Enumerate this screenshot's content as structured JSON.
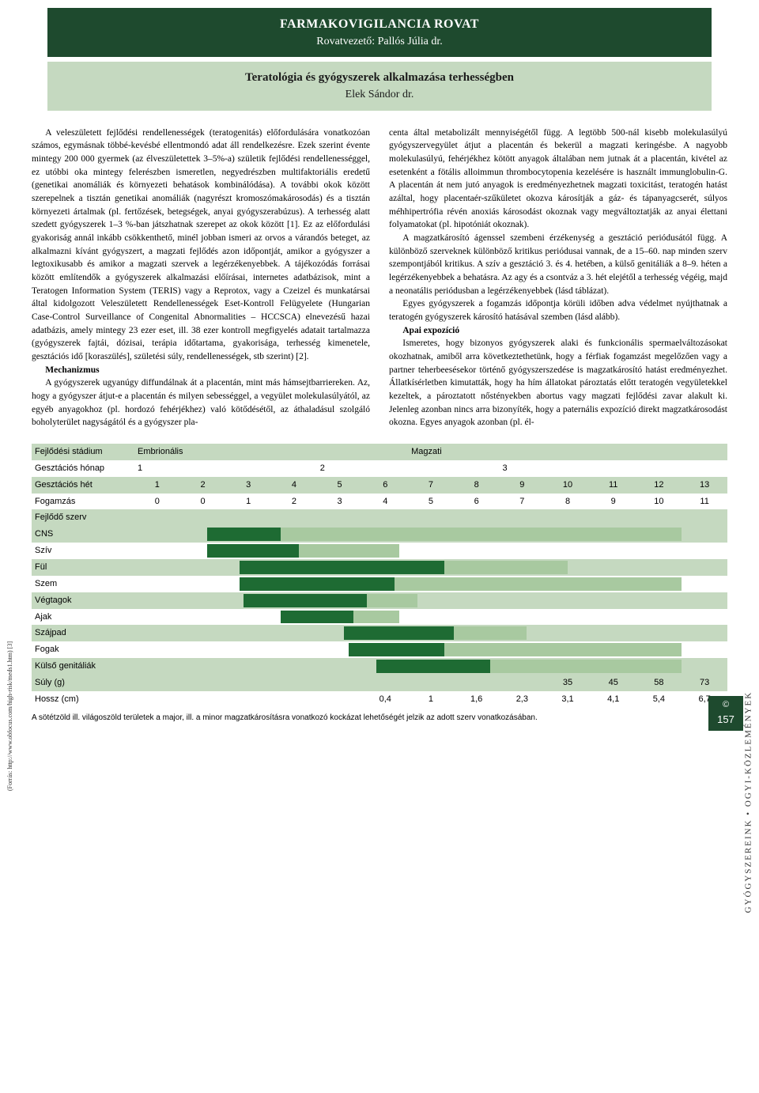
{
  "header": {
    "rovat": "FARMAKOVIGILANCIA ROVAT",
    "vezeto": "Rovatvezető: Pallós Júlia dr.",
    "title": "Teratológia és gyógyszerek alkalmazása terhességben",
    "author": "Elek Sándor dr."
  },
  "body": {
    "col1p1": "A veleszületett fejlődési rendellenességek (teratogenitás) előfordulására vonatkozóan számos, egymásnak többé-kevésbé ellentmondó adat áll rendelkezésre. Ezek szerint évente mintegy 200 000 gyermek (az élveszületettek 3–5%-a) születik fejlődési rendellenességgel, ez utóbbi oka mintegy felerészben ismeretlen, negyedrészben multifaktoriális eredetű (genetikai anomáliák és környezeti behatások kombinálódása). A további okok között szerepelnek a tisztán genetikai anomáliák (nagyrészt kromoszómakárosodás) és a tisztán környezeti ártalmak (pl. fertőzések, betegségek, anyai gyógyszerabúzus). A terhesség alatt szedett gyógyszerek 1–3 %-ban játszhatnak szerepet az okok között [1]. Ez az előfordulási gyakoriság annál inkább csökkenthető, minél jobban ismeri az orvos a várandós beteget, az alkalmazni kívánt gyógyszert, a magzati fejlődés azon időpontját, amikor a gyógyszer a legtoxikusabb és amikor a magzati szervek a legérzékenyebbek. A tájékozódás forrásai között említendők a gyógyszerek alkalmazási előírásai, internetes adatbázisok, mint a Teratogen Information System (TERIS) vagy a Reprotox, vagy a Czeizel és munkatársai által kidolgozott Veleszületett Rendellenességek Eset-Kontroll Felügyelete (Hungarian Case-Control Surveillance of Congenital Abnormalities – HCCSCA) elnevezésű hazai adatbázis, amely mintegy 23 ezer eset, ill. 38 ezer kontroll megfigyelés adatait tartalmazza (gyógyszerek fajtái, dózisai, terápia időtartama, gyakorisága, terhesség kimenetele, gesztációs idő [koraszülés], születési súly, rendellenességek, stb szerint) [2].",
    "col1h": "Mechanizmus",
    "col1p2": "A gyógyszerek ugyanúgy diffundálnak át a placentán, mint más hámsejtbarriereken. Az, hogy a gyógyszer átjut-e a placentán és milyen sebességgel, a vegyület molekulasúlyától, az egyéb anyagokhoz (pl. hordozó fehérjékhez) való kötődésétől, az áthaladásul szolgáló boholyterület nagyságától és a gyógyszer pla-",
    "col2p1": "centa által metabolizált mennyiségétől függ. A legtöbb 500-nál kisebb molekulasúlyú gyógyszervegyület átjut a placentán és bekerül a magzati keringésbe. A nagyobb molekulasúlyú, fehérjékhez kötött anyagok általában nem jutnak át a placentán, kivétel az esetenként a fötális alloimmun thrombocytopenia kezelésére is használt immunglobulin-G. A placentán át nem jutó anyagok is eredményezhetnek magzati toxicitást, teratogén hatást azáltal, hogy placentaér-szűkületet okozva károsítják a gáz- és tápanyagcserét, súlyos méhhipertrófia révén anoxiás károsodást okoznak vagy megváltoztatják az anyai élettani folyamatokat (pl. hipotóniát okoznak).",
    "col2p2": "A magzatkárosító ágenssel szembeni érzékenység a gesztáció periódusától függ. A különböző szerveknek különböző kritikus periódusai vannak, de a 15–60. nap minden szerv szempontjából kritikus. A szív a gesztáció 3. és 4. hetében, a külső genitáliák a 8–9. héten a legérzékenyebbek a behatásra. Az agy és a csontváz a 3. hét elejétől a terhesség végéig, majd a neonatális periódusban a legérzékenyebbek (lásd táblázat).",
    "col2p3": "Egyes gyógyszerek a fogamzás időpontja körüli időben adva védelmet nyújthatnak a teratogén gyógyszerek károsító hatásával szemben (lásd alább).",
    "col2h": "Apai expozíció",
    "col2p4": "Ismeretes, hogy bizonyos gyógyszerek alaki és funkcionális spermaelváltozásokat okozhatnak, amiből arra következtethetünk, hogy a férfiak fogamzást megelőzően vagy a partner teherbeesé­sekor történő gyógyszerszedése is magzatkárosító hatást eredményezhet. Állatkísérletben kimutatták, hogy ha hím állatokat pároztatás előtt teratogén vegyületekkel kezeltek, a pároztatott nőstényekben abortus vagy magzati fejlődési zavar alakult ki. Jelenleg azonban nincs arra bizonyíték, hogy a paternális expozíció direkt magzatkárosodást okozna. Egyes anyagok azonban (pl. él-"
  },
  "table": {
    "stage_label": "Fejlődési stádium",
    "stage_embr": "Embrionális",
    "stage_fetal": "Magzati",
    "gest_month_label": "Gesztációs hónap",
    "gest_months": [
      "1",
      "2",
      "3"
    ],
    "gest_week_label": "Gesztációs hét",
    "gest_weeks": [
      "1",
      "2",
      "3",
      "4",
      "5",
      "6",
      "7",
      "8",
      "9",
      "10",
      "11",
      "12",
      "13"
    ],
    "fog_label": "Fogamzás",
    "fog_values": [
      "0",
      "0",
      "1",
      "2",
      "3",
      "4",
      "5",
      "6",
      "7",
      "8",
      "9",
      "10",
      "11"
    ],
    "fejlodo_label": "Fejlődő szerv",
    "organs": [
      {
        "name": "CNS",
        "alt": true,
        "dark_start": 2.6,
        "dark_end": 4.2,
        "light_start": 4.2,
        "light_end": 13
      },
      {
        "name": "Szív",
        "alt": false,
        "dark_start": 2.6,
        "dark_end": 4.6,
        "light_start": 4.6,
        "light_end": 6.8
      },
      {
        "name": "Fül",
        "alt": true,
        "dark_start": 3.3,
        "dark_end": 7.8,
        "light_start": 7.8,
        "light_end": 10.5
      },
      {
        "name": "Szem",
        "alt": false,
        "dark_start": 3.3,
        "dark_end": 6.7,
        "light_start": 6.7,
        "light_end": 13
      },
      {
        "name": "Végtagok",
        "alt": true,
        "dark_start": 3.4,
        "dark_end": 6.1,
        "light_start": 6.1,
        "light_end": 7.2
      },
      {
        "name": "Ajak",
        "alt": false,
        "dark_start": 4.2,
        "dark_end": 5.8,
        "light_start": 5.8,
        "light_end": 6.8
      },
      {
        "name": "Szájpad",
        "alt": true,
        "dark_start": 5.6,
        "dark_end": 8.0,
        "light_start": 8.0,
        "light_end": 9.6
      },
      {
        "name": "Fogak",
        "alt": false,
        "dark_start": 5.7,
        "dark_end": 7.8,
        "light_start": 7.8,
        "light_end": 13
      },
      {
        "name": "Külső genitáliák",
        "alt": true,
        "dark_start": 6.3,
        "dark_end": 8.8,
        "light_start": 8.8,
        "light_end": 13
      }
    ],
    "suly_label": "Súly (g)",
    "suly_values": [
      "",
      "",
      "",
      "",
      "",
      "",
      "",
      "",
      "",
      "35",
      "45",
      "58",
      "73"
    ],
    "hossz_label": "Hossz (cm)",
    "hossz_values": [
      "",
      "",
      "",
      "",
      "",
      "0,4",
      "1",
      "1,6",
      "2,3",
      "3,1",
      "4,1",
      "5,4",
      "6,7"
    ],
    "footnote": "A sötétzöld ill. világoszöld területek a major, ill. a minor magzatkárosításra vonatkozó kockázat lehetőségét jelzik az adott szerv vonatkozásában.",
    "colors": {
      "dark": "#1e6b33",
      "light": "#a8c9a0",
      "alt_bg": "#c5d9c0"
    }
  },
  "margins": {
    "source": "(Forrás: http://www.obfocus.com/high-risk/meds1.htm) [3]",
    "side": "GYÓGYSZEREINK • OGYI-KÖZLEMÉNYEK",
    "pagenum": "157",
    "circ": "©"
  }
}
